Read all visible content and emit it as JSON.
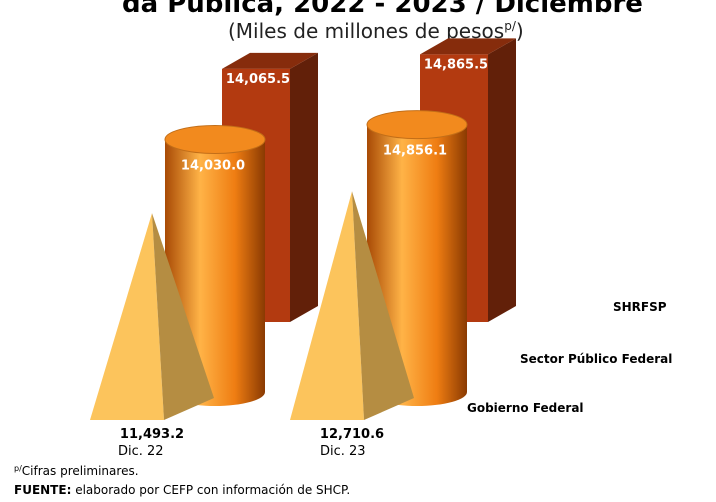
{
  "chart_data": {
    "type": "bar3d",
    "title": "da Pública, 2022 - 2023 / Diciembre",
    "subtitle": {
      "text": "(Miles de millones de pesos",
      "sup": "p/",
      "close": ")"
    },
    "categories": [
      "Dic. 22",
      "Dic. 23"
    ],
    "series": [
      {
        "name": "Gobierno Federal",
        "shape": "pyramid",
        "color": "#fcc45c",
        "values": [
          11493.2,
          12710.6
        ],
        "value_labels": [
          "11,493.2",
          "12,710.6"
        ]
      },
      {
        "name": "Sector Público Federal",
        "shape": "cylinder",
        "color": "#f28a1e",
        "values": [
          14030.0,
          14856.1
        ],
        "value_labels": [
          "14,030.0",
          "14,856.1"
        ]
      },
      {
        "name": "SHRFSP",
        "shape": "box",
        "color": "#b33a10",
        "values": [
          14065.5,
          14865.5
        ],
        "value_labels": [
          "14,065.5",
          "14,865.5"
        ]
      }
    ],
    "note": {
      "sup": "p/",
      "text": "Cifras preliminares."
    },
    "source": {
      "label": "FUENTE:",
      "text": " elaborado por CEFP con información de SHCP."
    }
  }
}
